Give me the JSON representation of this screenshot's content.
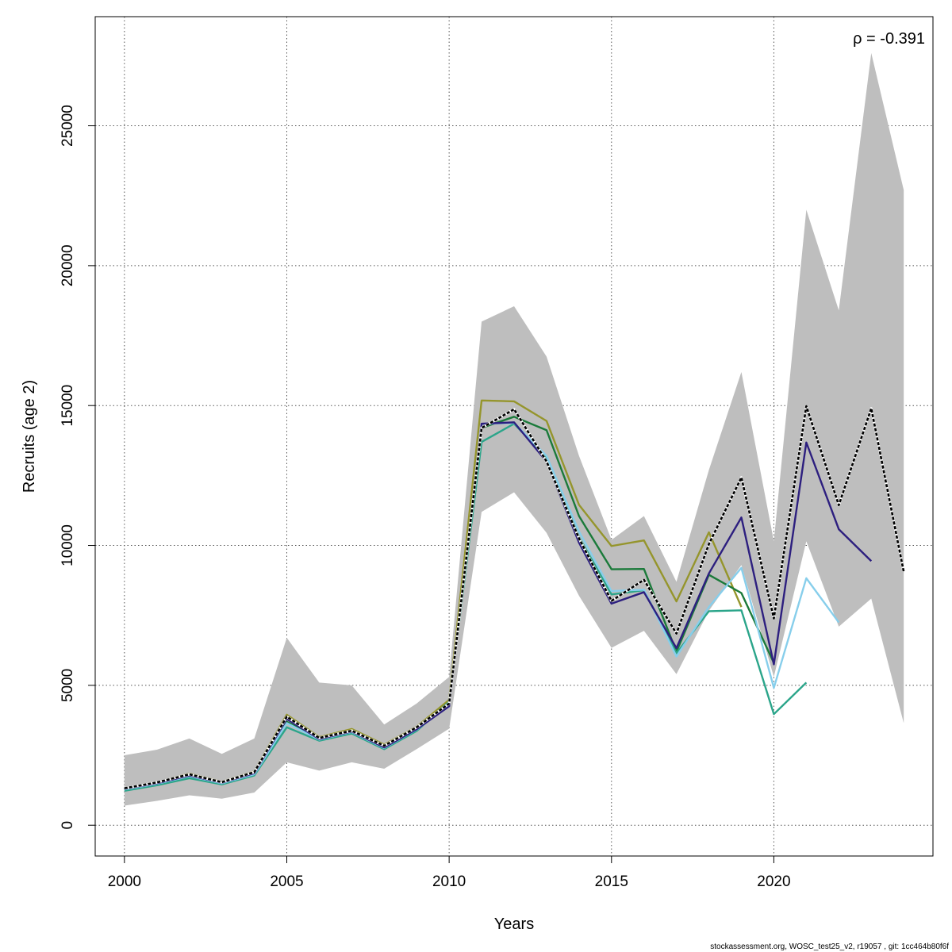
{
  "chart_data": {
    "type": "line",
    "xlabel": "Years",
    "ylabel": "Recruits (age 2)",
    "xlim": [
      1999.1,
      2024.9
    ],
    "ylim": [
      -1100,
      28900
    ],
    "xticks": [
      2000,
      2005,
      2010,
      2015,
      2020
    ],
    "yticks": [
      0,
      5000,
      10000,
      15000,
      20000,
      25000
    ],
    "grid": true,
    "annotation": "ρ = -0.391",
    "footer": "stockassessment.org, WOSC_test25_v2, r19057 , git: 1cc464b80f6f",
    "colors": {
      "band": "#bebebe",
      "base": "#000000",
      "peel1": "#2d1f7f",
      "peel2": "#87ceeb",
      "peel3": "#2ba58a",
      "peel4": "#1b7a3a",
      "peel5": "#95952c"
    },
    "x": [
      2000,
      2001,
      2002,
      2003,
      2004,
      2005,
      2006,
      2007,
      2008,
      2009,
      2010,
      2011,
      2012,
      2013,
      2014,
      2015,
      2016,
      2017,
      2018,
      2019,
      2020,
      2021,
      2022,
      2023,
      2024
    ],
    "band_upper": [
      2500,
      2700,
      3100,
      2550,
      3100,
      6700,
      5100,
      5000,
      3600,
      4350,
      5300,
      18000,
      18550,
      16750,
      13200,
      10200,
      11050,
      8700,
      12700,
      16200,
      10150,
      22000,
      18400,
      27600,
      22700
    ],
    "band_lower": [
      700,
      870,
      1070,
      950,
      1170,
      2250,
      1950,
      2250,
      2020,
      2720,
      3450,
      11200,
      11900,
      10450,
      8200,
      6340,
      6950,
      5400,
      7670,
      9300,
      5300,
      10150,
      7100,
      8100,
      3650
    ],
    "series": [
      {
        "key": "base",
        "style": "dashed",
        "values": [
          1320,
          1530,
          1820,
          1540,
          1900,
          3880,
          3120,
          3380,
          2840,
          3500,
          4350,
          14200,
          14870,
          13000,
          10250,
          8020,
          8770,
          6850,
          10050,
          12430,
          7390,
          14980,
          11440,
          14900,
          9060
        ]
      },
      {
        "key": "peel1",
        "style": "solid",
        "values": [
          1300,
          1500,
          1780,
          1520,
          1860,
          3800,
          3080,
          3350,
          2780,
          3430,
          4250,
          14350,
          14400,
          13000,
          10100,
          7920,
          8330,
          6330,
          9000,
          11000,
          5750,
          13680,
          10580,
          9440,
          null
        ]
      },
      {
        "key": "peel2",
        "style": "solid",
        "values": [
          1280,
          1480,
          1750,
          1500,
          1820,
          3650,
          3060,
          3330,
          2760,
          3420,
          4270,
          14340,
          14380,
          13200,
          10500,
          8370,
          8420,
          6030,
          7800,
          9200,
          4910,
          8830,
          7250,
          null,
          null
        ]
      },
      {
        "key": "peel3",
        "style": "solid",
        "values": [
          1230,
          1430,
          1680,
          1460,
          1780,
          3500,
          3020,
          3280,
          2720,
          3370,
          4400,
          13700,
          14350,
          13150,
          10300,
          8250,
          8400,
          6150,
          7650,
          7680,
          3970,
          5100,
          null,
          null,
          null
        ]
      },
      {
        "key": "peel4",
        "style": "solid",
        "values": [
          1270,
          1470,
          1740,
          1510,
          1840,
          3700,
          3090,
          3350,
          2780,
          3450,
          4400,
          14200,
          14600,
          14120,
          11050,
          9150,
          9160,
          6200,
          8950,
          8300,
          5800,
          null,
          null,
          null,
          null
        ]
      },
      {
        "key": "peel5",
        "style": "solid",
        "values": [
          1320,
          1530,
          1840,
          1550,
          1920,
          3950,
          3150,
          3440,
          2880,
          3520,
          4480,
          15180,
          15150,
          14450,
          11450,
          9980,
          10180,
          8000,
          10470,
          7800,
          null,
          null,
          null,
          null,
          null
        ]
      }
    ]
  }
}
